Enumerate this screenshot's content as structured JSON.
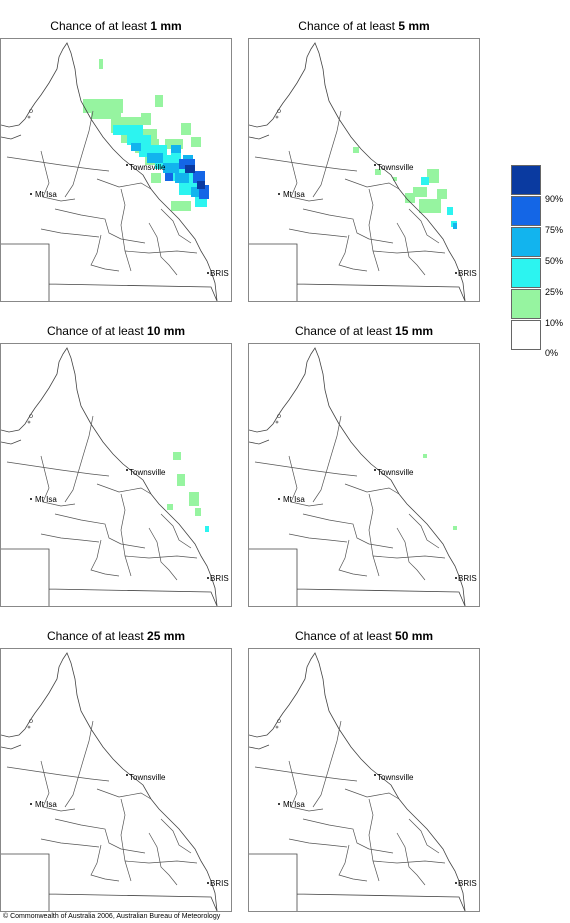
{
  "panels": [
    {
      "prefix": "Chance of at least ",
      "amount": "1 mm"
    },
    {
      "prefix": "Chance of at least ",
      "amount": "5 mm"
    },
    {
      "prefix": "Chance of at least ",
      "amount": "10 mm"
    },
    {
      "prefix": "Chance of at least ",
      "amount": "15 mm"
    },
    {
      "prefix": "Chance of at least ",
      "amount": "25 mm"
    },
    {
      "prefix": "Chance of at least ",
      "amount": "50 mm"
    }
  ],
  "places": {
    "townsville": "Townsville",
    "mt_isa": "Mt Isa",
    "bris": "BRIS"
  },
  "legend": {
    "labels": [
      "90%",
      "75%",
      "50%",
      "25%",
      "10%",
      "0%"
    ],
    "colors": [
      "#0a3aa0",
      "#1466e6",
      "#12b4ee",
      "#2cf4f0",
      "#96f4a0",
      "#ffffff"
    ]
  },
  "colors": {
    "green": "#96f4a0",
    "cyan": "#2cf4f0",
    "sky": "#12b4ee",
    "blue": "#1466e6",
    "navy": "#0a3aa0"
  },
  "copyright": "© Commonwealth of Australia 2006, Australian Bureau of Meteorology"
}
